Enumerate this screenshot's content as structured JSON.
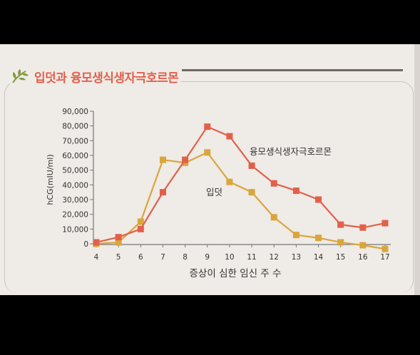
{
  "heading": {
    "title": "입덧과 융모생식생자극호르몬",
    "colors": {
      "accent": "#e1604d",
      "leaf": "#7f9a3c"
    }
  },
  "chart_data": {
    "type": "line",
    "title": "입덧과 융모생식생자극호르몬",
    "xlabel": "증상이 심한 임신 주 수",
    "ylabel": "hCG(mIU/ml)",
    "x": [
      4,
      5,
      6,
      7,
      8,
      9,
      10,
      11,
      12,
      13,
      14,
      15,
      16,
      17
    ],
    "xlim": [
      4,
      17
    ],
    "ylim": [
      0,
      90000
    ],
    "yticks": [
      0,
      10000,
      20000,
      30000,
      40000,
      50000,
      60000,
      70000,
      80000,
      90000
    ],
    "ytick_labels": [
      "0",
      "10,000",
      "20,000",
      "30,000",
      "40,000",
      "50,000",
      "60,000",
      "70,000",
      "80,000",
      "90,000"
    ],
    "xtick_labels": [
      "4",
      "5",
      "6",
      "7",
      "8",
      "9",
      "10",
      "11",
      "12",
      "13",
      "14",
      "15",
      "16",
      "17"
    ],
    "grid": false,
    "series": [
      {
        "name": "융모생식생자극호르몬",
        "color": "#e2604a",
        "values": [
          1000,
          4500,
          10000,
          35000,
          57000,
          79500,
          73000,
          53000,
          41000,
          36000,
          30000,
          13000,
          11000,
          14000
        ]
      },
      {
        "name": "입덧",
        "color": "#d9a63c",
        "values": [
          0,
          1000,
          15000,
          57000,
          55000,
          62000,
          42000,
          35000,
          18000,
          6000,
          4000,
          1000,
          -1000,
          -3500
        ]
      }
    ]
  }
}
